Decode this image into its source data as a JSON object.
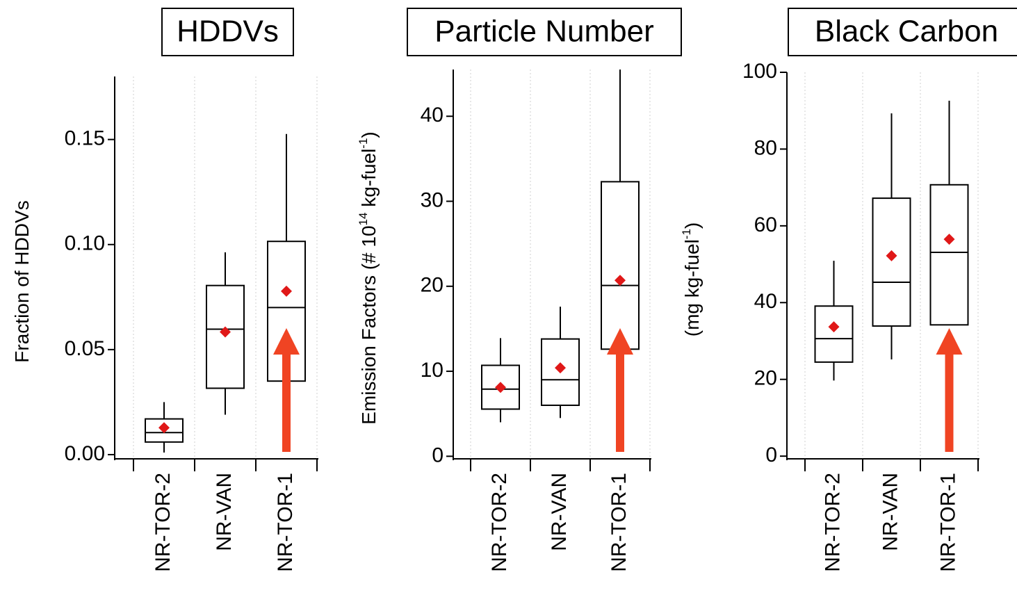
{
  "chart_data": [
    {
      "type": "box",
      "title": "HDDVs",
      "y_label_parts": [
        {
          "text": "Fraction of HDDVs"
        }
      ],
      "categories": [
        "NR-TOR-2",
        "NR-VAN",
        "NR-TOR-1"
      ],
      "boxes": [
        {
          "whisker_low": 0.001,
          "q1": 0.006,
          "median": 0.0105,
          "q3": 0.017,
          "whisker_high": 0.025,
          "mean": 0.0128
        },
        {
          "whisker_low": 0.019,
          "q1": 0.0316,
          "median": 0.0597,
          "q3": 0.0805,
          "whisker_high": 0.0963,
          "mean": 0.0584
        },
        {
          "whisker_low": 0.035,
          "q1": 0.035,
          "median": 0.07,
          "q3": 0.1015,
          "whisker_high": 0.1526,
          "mean": 0.0778
        }
      ],
      "ylim": [
        -0.002,
        0.18
      ],
      "yticks": [
        {
          "value": 0,
          "label": "0.00"
        },
        0.05,
        {
          "value": 0.1,
          "label": "0.10"
        },
        0.15
      ],
      "grid": true,
      "box_color": "#000000",
      "mean_color": "#e01818"
    },
    {
      "type": "box",
      "title": "Particle Number",
      "y_label_parts": [
        {
          "text": "Emission Factors (# 10"
        },
        {
          "text": "14",
          "sup": true
        },
        {
          "text": " kg-fuel"
        },
        {
          "text": "-1",
          "sup": true
        },
        {
          "text": ")"
        }
      ],
      "categories": [
        "NR-TOR-2",
        "NR-VAN",
        "NR-TOR-1"
      ],
      "boxes": [
        {
          "whisker_low": 4.0,
          "q1": 5.55,
          "median": 7.9,
          "q3": 10.7,
          "whisker_high": 13.9,
          "mean": 8.1
        },
        {
          "whisker_low": 4.5,
          "q1": 6.0,
          "median": 9.0,
          "q3": 13.8,
          "whisker_high": 17.6,
          "mean": 10.4
        },
        {
          "whisker_low": 12.6,
          "q1": 12.6,
          "median": 20.1,
          "q3": 32.3,
          "whisker_high": 45.5,
          "mean": 20.7
        }
      ],
      "ylim": [
        -0.3,
        45.5
      ],
      "yticks": [
        0,
        10,
        20,
        30,
        40
      ],
      "grid": true,
      "box_color": "#000000",
      "mean_color": "#e01818"
    },
    {
      "type": "box",
      "title": "Black Carbon",
      "y_label_parts": [
        {
          "text": "(mg kg-fuel"
        },
        {
          "text": "-1",
          "sup": true
        },
        {
          "text": ")"
        }
      ],
      "categories": [
        "NR-TOR-2",
        "NR-VAN",
        "NR-TOR-1"
      ],
      "boxes": [
        {
          "whisker_low": 19.7,
          "q1": 24.5,
          "median": 30.6,
          "q3": 39.1,
          "whisker_high": 50.9,
          "mean": 33.7
        },
        {
          "whisker_low": 25.2,
          "q1": 33.9,
          "median": 45.3,
          "q3": 67.2,
          "whisker_high": 89.3,
          "mean": 52.2
        },
        {
          "whisker_low": 34.2,
          "q1": 34.2,
          "median": 53.1,
          "q3": 70.7,
          "whisker_high": 92.6,
          "mean": 56.5
        }
      ],
      "ylim": [
        -0.7,
        100
      ],
      "yticks": [
        0,
        20,
        40,
        60,
        80,
        100
      ],
      "grid": true,
      "box_color": "#000000",
      "mean_color": "#e01818"
    }
  ]
}
